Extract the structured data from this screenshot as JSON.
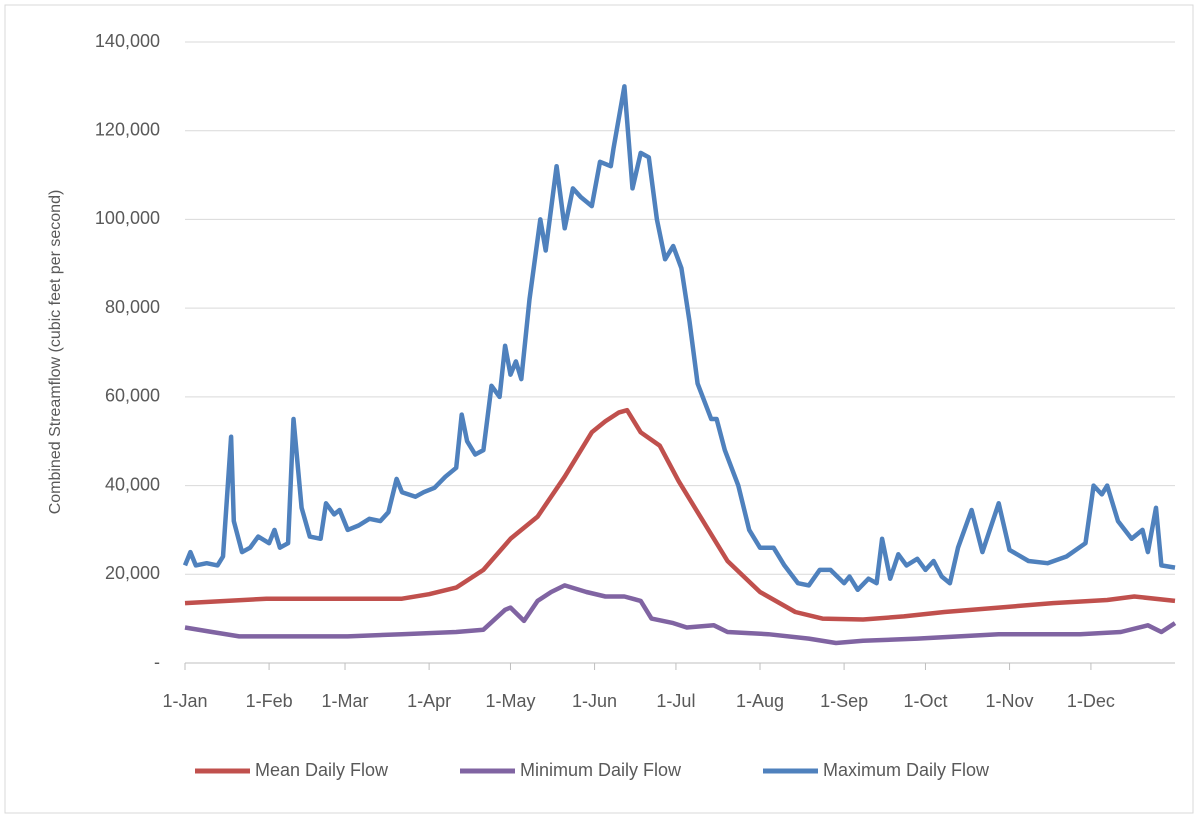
{
  "chart_data": {
    "type": "line",
    "ylabel": "Combined Streamflow (cubic feet per second)",
    "xlim": [
      0,
      365
    ],
    "xticks": [
      {
        "value": 0,
        "label": "1-Jan"
      },
      {
        "value": 31,
        "label": "1-Feb"
      },
      {
        "value": 59,
        "label": "1-Mar"
      },
      {
        "value": 90,
        "label": "1-Apr"
      },
      {
        "value": 120,
        "label": "1-May"
      },
      {
        "value": 151,
        "label": "1-Jun"
      },
      {
        "value": 181,
        "label": "1-Jul"
      },
      {
        "value": 212,
        "label": "1-Aug"
      },
      {
        "value": 243,
        "label": "1-Sep"
      },
      {
        "value": 273,
        "label": "1-Oct"
      },
      {
        "value": 304,
        "label": "1-Nov"
      },
      {
        "value": 334,
        "label": "1-Dec"
      }
    ],
    "ylim": [
      0,
      140000
    ],
    "yticks": [
      {
        "value": 0,
        "label": "-"
      },
      {
        "value": 20000,
        "label": "20,000"
      },
      {
        "value": 40000,
        "label": "40,000"
      },
      {
        "value": 60000,
        "label": "60,000"
      },
      {
        "value": 80000,
        "label": "80,000"
      },
      {
        "value": 100000,
        "label": "100,000"
      },
      {
        "value": 120000,
        "label": "120,000"
      },
      {
        "value": 140000,
        "label": "140,000"
      }
    ],
    "grid": true,
    "legend": "bottom",
    "series": [
      {
        "name": "Mean Daily Flow",
        "color": "#c0504d",
        "x": [
          0,
          30,
          60,
          80,
          90,
          100,
          110,
          120,
          130,
          140,
          150,
          155,
          160,
          163,
          168,
          175,
          182,
          190,
          200,
          212,
          225,
          235,
          250,
          265,
          280,
          300,
          320,
          340,
          350,
          365
        ],
        "values": [
          13500,
          14500,
          14500,
          14500,
          15500,
          17000,
          21000,
          28000,
          33000,
          42000,
          52000,
          54500,
          56500,
          57000,
          52000,
          49000,
          41000,
          33000,
          23000,
          16000,
          11500,
          10000,
          9800,
          10500,
          11500,
          12500,
          13500,
          14200,
          15000,
          14000
        ]
      },
      {
        "name": "Minimum Daily Flow",
        "color": "#8064a2",
        "x": [
          0,
          10,
          20,
          40,
          60,
          80,
          100,
          110,
          118,
          120,
          125,
          130,
          135,
          140,
          148,
          155,
          162,
          168,
          172,
          180,
          185,
          195,
          200,
          215,
          230,
          240,
          250,
          270,
          300,
          330,
          345,
          355,
          360,
          365
        ],
        "values": [
          8000,
          7000,
          6000,
          6000,
          6000,
          6500,
          7000,
          7500,
          12000,
          12500,
          9500,
          14000,
          16000,
          17500,
          16000,
          15000,
          15000,
          14000,
          10000,
          9000,
          8000,
          8500,
          7000,
          6500,
          5500,
          4500,
          5000,
          5500,
          6500,
          6500,
          7000,
          8500,
          7000,
          9000
        ]
      },
      {
        "name": "Maximum Daily Flow",
        "color": "#4f81bd",
        "x": [
          0,
          2,
          4,
          8,
          12,
          14,
          17,
          18,
          21,
          24,
          27,
          31,
          33,
          35,
          38,
          40,
          43,
          46,
          50,
          52,
          55,
          57,
          60,
          64,
          68,
          72,
          75,
          78,
          80,
          85,
          88,
          92,
          96,
          100,
          102,
          104,
          107,
          110,
          113,
          116,
          118,
          120,
          122,
          124,
          127,
          131,
          133,
          137,
          140,
          143,
          146,
          150,
          153,
          157,
          158,
          162,
          165,
          168,
          171,
          174,
          177,
          180,
          183,
          186,
          189,
          194,
          196,
          199,
          204,
          208,
          212,
          217,
          221,
          226,
          230,
          234,
          238,
          243,
          245,
          248,
          252,
          255,
          257,
          260,
          263,
          266,
          270,
          273,
          276,
          279,
          282,
          285,
          290,
          294,
          300,
          304,
          311,
          318,
          325,
          332,
          335,
          338,
          340,
          344,
          349,
          353,
          355,
          358,
          360,
          365
        ],
        "values": [
          22000,
          25000,
          22000,
          22500,
          22000,
          24000,
          51000,
          32000,
          25000,
          26000,
          28500,
          27000,
          30000,
          26000,
          27000,
          55000,
          35000,
          28500,
          28000,
          36000,
          33500,
          34500,
          30000,
          31000,
          32500,
          32000,
          34000,
          41500,
          38500,
          37500,
          38500,
          39500,
          42000,
          44000,
          56000,
          50000,
          47000,
          48000,
          62500,
          60000,
          71500,
          65000,
          68000,
          64000,
          82000,
          100000,
          93000,
          112000,
          98000,
          107000,
          105000,
          103000,
          113000,
          112000,
          116000,
          130000,
          107000,
          115000,
          114000,
          100000,
          91000,
          94000,
          89000,
          77000,
          63000,
          55000,
          55000,
          48000,
          40000,
          30000,
          26000,
          26000,
          22000,
          18000,
          17500,
          21000,
          21000,
          18000,
          19500,
          16500,
          19000,
          18000,
          28000,
          19000,
          24500,
          22000,
          23500,
          21000,
          23000,
          19500,
          18000,
          26000,
          34500,
          25000,
          36000,
          25500,
          23000,
          22500,
          24000,
          27000,
          40000,
          38000,
          40000,
          32000,
          28000,
          30000,
          25000,
          35000,
          22000,
          21500
        ]
      }
    ]
  }
}
